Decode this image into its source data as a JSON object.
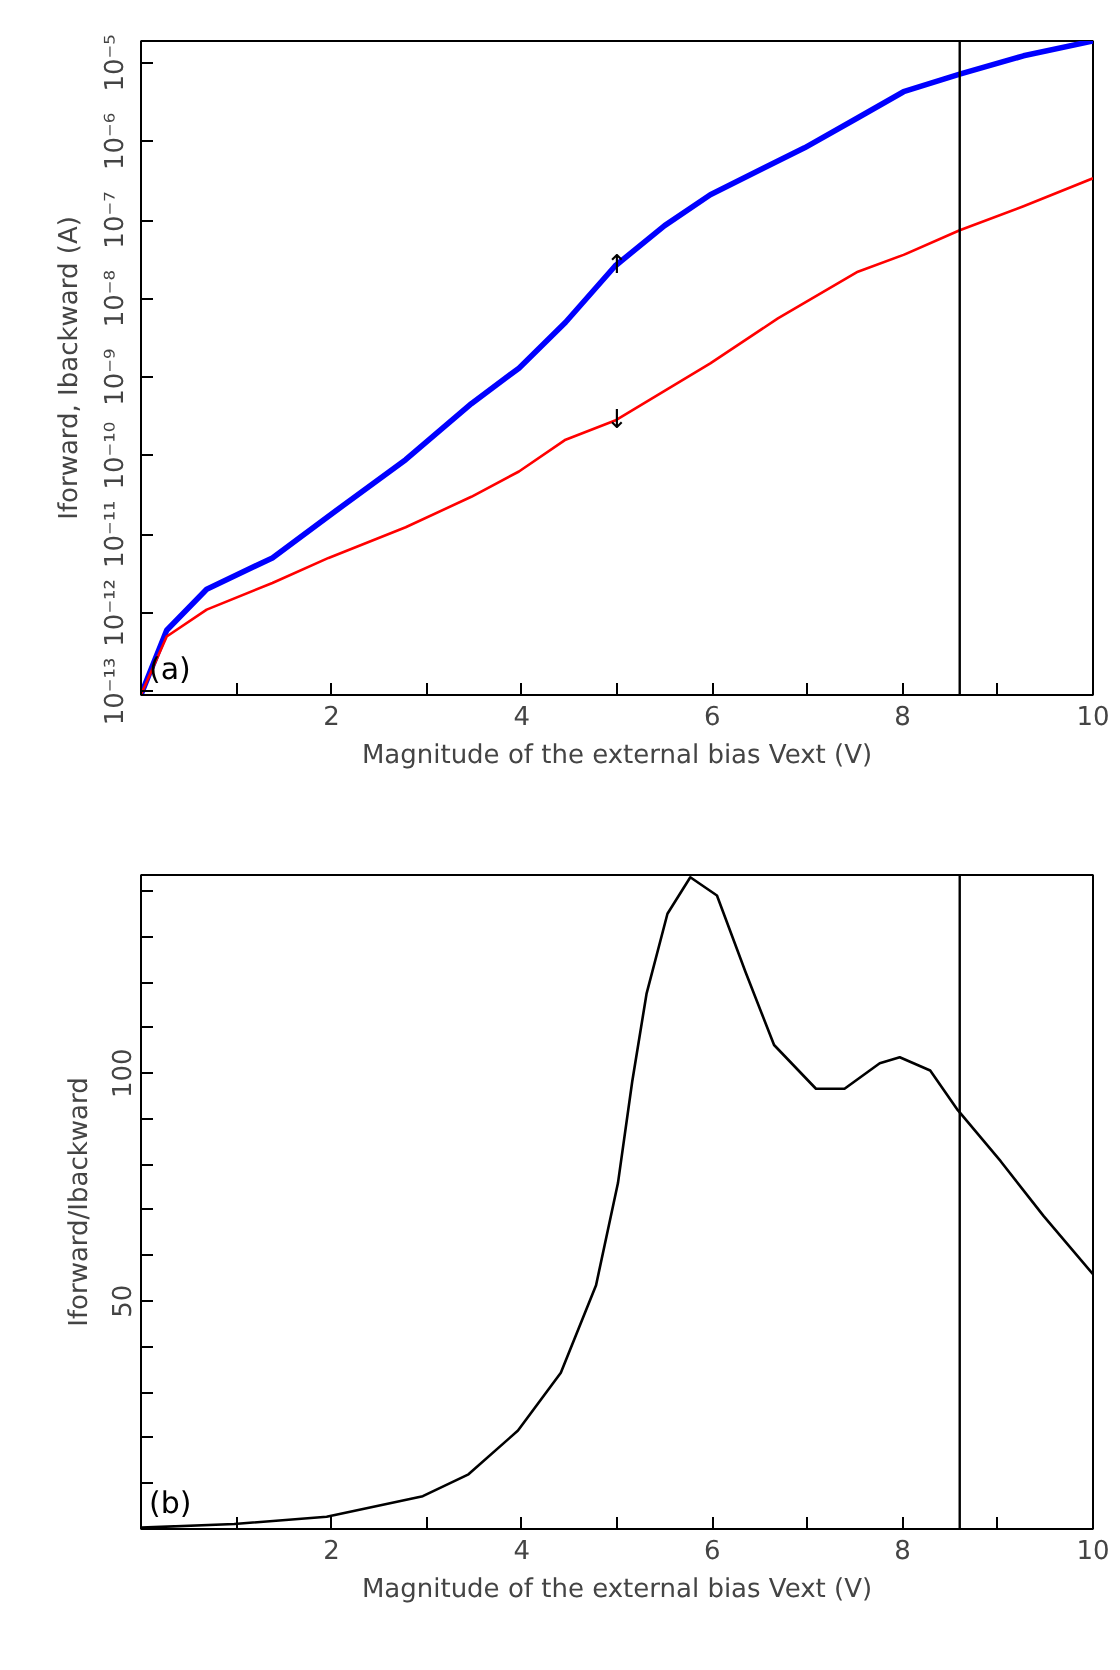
{
  "chart_data": [
    {
      "type": "line",
      "xlabel": "Magnitude of the external bias Vext (V)",
      "ylabel": "Iforward, Ibackward (A)",
      "log": "y",
      "xlim": [
        0,
        10
      ],
      "ylim": [
        9e-14,
        1.9e-05
      ],
      "xticks": [
        {
          "value": 1,
          "label": null
        },
        2,
        {
          "value": 3,
          "label": null
        },
        4,
        {
          "value": 5,
          "label": null
        },
        6,
        {
          "value": 7,
          "label": null
        },
        8,
        {
          "value": 9,
          "label": null
        },
        10
      ],
      "yticks": [
        {
          "value": 1e-13,
          "label": "10⁻¹³"
        },
        {
          "value": 1e-12,
          "label": "10⁻¹²"
        },
        {
          "value": 1e-11,
          "label": "10⁻¹¹"
        },
        {
          "value": 1e-10,
          "label": "10⁻¹⁰"
        },
        {
          "value": 1e-09,
          "label": "10⁻⁹"
        },
        {
          "value": 1e-08,
          "label": "10⁻⁸"
        },
        {
          "value": 1e-07,
          "label": "10⁻⁷"
        },
        {
          "value": 1e-06,
          "label": "10⁻⁶"
        },
        {
          "value": 1e-05,
          "label": "10⁻⁵"
        }
      ],
      "series": [
        {
          "color": "#0000ff",
          "x": [
            0,
            0.27,
            0.69,
            1.38,
            1.97,
            2.78,
            3.47,
            3.97,
            4.46,
            4.98,
            5.5,
            5.98,
            6.97,
            7.53,
            8.01,
            8.6,
            9.27,
            10
          ],
          "values": [
            9.1e-14,
            6e-13,
            2e-12,
            5e-12,
            1.7e-11,
            8.9e-11,
            4.6e-10,
            1.3e-09,
            5e-09,
            2.6e-08,
            8.5e-08,
            2.1e-07,
            8.3e-07,
            2e-06,
            4.3e-06,
            7.2e-06,
            1.23e-05,
            1.9e-05
          ]
        },
        {
          "color": "#ff0000",
          "x": [
            0,
            0.27,
            0.69,
            1.38,
            1.97,
            2.78,
            3.47,
            3.97,
            4.46,
            4.98,
            5.98,
            6.69,
            7.53,
            8.01,
            8.6,
            9.27,
            10
          ],
          "values": [
            9.1e-14,
            5e-13,
            1.1e-12,
            2.4e-12,
            5e-12,
            1.23e-11,
            3e-11,
            6.3e-11,
            1.6e-10,
            2.8e-10,
            1.5e-09,
            5.6e-09,
            2.2e-08,
            3.6e-08,
            7.4e-08,
            1.5e-07,
            3.4e-07
          ]
        }
      ],
      "ref_lines": [
        {
          "axis": "x",
          "value": 8.6,
          "color": "#000000"
        }
      ],
      "annotations": [
        "(a)",
        {
          "text": "↑",
          "x": 5,
          "y": 2.6e-08
        },
        {
          "text": "↓",
          "x": 5,
          "y": 2.8e-10
        }
      ]
    },
    {
      "type": "line",
      "xlabel": "Magnitude of the external bias Vext (V)",
      "ylabel": "Iforward/Ibackward",
      "xlim": [
        0,
        10
      ],
      "ylim": [
        0,
        143.5
      ],
      "xticks": [
        {
          "value": 1,
          "label": null
        },
        2,
        {
          "value": 3,
          "label": null
        },
        4,
        {
          "value": 5,
          "label": null
        },
        6,
        {
          "value": 7,
          "label": null
        },
        8,
        {
          "value": 9,
          "label": null
        },
        10
      ],
      "yticks": [
        {
          "value": 10,
          "label": null
        },
        {
          "value": 20,
          "label": null
        },
        {
          "value": 30,
          "label": null
        },
        {
          "value": 40,
          "label": null
        },
        50,
        {
          "value": 60,
          "label": null
        },
        {
          "value": 70,
          "label": null
        },
        {
          "value": 80,
          "label": null
        },
        {
          "value": 90,
          "label": null
        },
        100,
        {
          "value": 110,
          "label": null
        },
        {
          "value": 120,
          "label": null
        },
        {
          "value": 130,
          "label": null
        },
        {
          "value": 140,
          "label": null
        }
      ],
      "series": [
        {
          "color": "#000000",
          "x": [
            0,
            0.98,
            1.95,
            2.96,
            3.44,
            3.96,
            4.41,
            4.78,
            5.01,
            5.16,
            5.31,
            5.53,
            5.77,
            6.05,
            6.35,
            6.65,
            7.09,
            7.39,
            7.76,
            7.97,
            8.29,
            8.58,
            9.03,
            9.48,
            10
          ],
          "values": [
            0.3,
            1.1,
            2.7,
            7.2,
            12,
            21.6,
            34.3,
            53.5,
            75.9,
            98.2,
            117.4,
            135,
            143,
            139,
            122.2,
            106.2,
            96.6,
            96.6,
            102.2,
            103.5,
            100.6,
            91.9,
            80.7,
            68.7,
            55.9
          ]
        }
      ],
      "ref_lines": [
        {
          "axis": "x",
          "value": 8.6,
          "color": "#000000"
        }
      ],
      "annotations": [
        "(b)"
      ]
    }
  ]
}
